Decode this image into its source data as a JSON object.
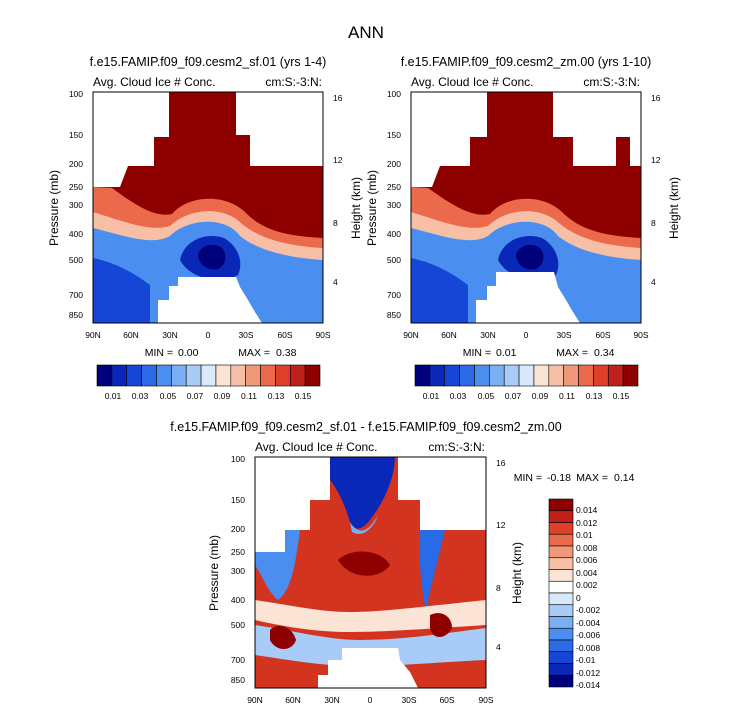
{
  "figure": {
    "title": "ANN"
  },
  "colors": {
    "ref_levels": [
      "#00007a",
      "#0a28b8",
      "#1646d6",
      "#2a6ae6",
      "#4a8ef0",
      "#7aaff4",
      "#a9cbf8",
      "#d9e9fb",
      "#fbe3d6",
      "#f7c0a6",
      "#f2987a",
      "#ec6a4c",
      "#e0402a",
      "#c0201a",
      "#8e0000"
    ],
    "diff_levels": [
      "#00007a",
      "#0a28b8",
      "#1646d6",
      "#2a6ae6",
      "#4a8ef0",
      "#7aaff4",
      "#a9cbf8",
      "#d9e9fb",
      "#ffffff",
      "#fbe3d6",
      "#f7c0a6",
      "#f2987a",
      "#ec6a4c",
      "#e0402a",
      "#c0201a",
      "#8e0000"
    ]
  },
  "chart_data": [
    {
      "type": "heatmap",
      "title": "f.e15.FAMIP.f09_f09.cesm2_sf.01 (yrs 1-4)",
      "left_label": "Avg. Cloud Ice # Conc.",
      "right_label": "cm:S:-3:N:",
      "xlabel": "",
      "ylabel": "Pressure (mb)",
      "y2label": "Height (km)",
      "xticks": [
        "90N",
        "60N",
        "30N",
        "0",
        "30S",
        "60S",
        "90S"
      ],
      "yticks": [
        "100",
        "150",
        "200",
        "250",
        "300",
        "400",
        "500",
        "700",
        "850"
      ],
      "y2ticks": [
        "16",
        "12",
        "8",
        "4"
      ],
      "stats": {
        "min_label": "MIN =",
        "min": "0.00",
        "max_label": "MAX =",
        "max": "0.38"
      },
      "colorbar": {
        "labels": [
          "0.01",
          "0.03",
          "0.05",
          "0.07",
          "0.09",
          "0.11",
          "0.13",
          "0.15"
        ]
      }
    },
    {
      "type": "heatmap",
      "title": "f.e15.FAMIP.f09_f09.cesm2_zm.00 (yrs 1-10)",
      "left_label": "Avg. Cloud Ice # Conc.",
      "right_label": "cm:S:-3:N:",
      "xlabel": "",
      "ylabel": "Pressure (mb)",
      "y2label": "Height (km)",
      "xticks": [
        "90N",
        "60N",
        "30N",
        "0",
        "30S",
        "60S",
        "90S"
      ],
      "yticks": [
        "100",
        "150",
        "200",
        "250",
        "300",
        "400",
        "500",
        "700",
        "850"
      ],
      "y2ticks": [
        "16",
        "12",
        "8",
        "4"
      ],
      "stats": {
        "min_label": "MIN =",
        "min": "0.01",
        "max_label": "MAX =",
        "max": "0.34"
      },
      "colorbar": {
        "labels": [
          "0.01",
          "0.03",
          "0.05",
          "0.07",
          "0.09",
          "0.11",
          "0.13",
          "0.15"
        ]
      }
    },
    {
      "type": "heatmap",
      "title": "f.e15.FAMIP.f09_f09.cesm2_sf.01 - f.e15.FAMIP.f09_f09.cesm2_zm.00",
      "left_label": "Avg. Cloud Ice # Conc.",
      "right_label": "cm:S:-3:N:",
      "xlabel": "",
      "ylabel": "Pressure (mb)",
      "y2label": "Height (km)",
      "xticks": [
        "90N",
        "60N",
        "30N",
        "0",
        "30S",
        "60S",
        "90S"
      ],
      "yticks": [
        "100",
        "150",
        "200",
        "250",
        "300",
        "400",
        "500",
        "700",
        "850"
      ],
      "y2ticks": [
        "16",
        "12",
        "8",
        "4"
      ],
      "stats": {
        "min_label": "MIN =",
        "min": "-0.18",
        "max_label": "MAX =",
        "max": "0.14"
      },
      "colorbar": {
        "labels": [
          "0.014",
          "0.012",
          "0.01",
          "0.008",
          "0.006",
          "0.004",
          "0.002",
          "0",
          "-0.002",
          "-0.004",
          "-0.006",
          "-0.008",
          "-0.01",
          "-0.012",
          "-0.014"
        ]
      }
    }
  ]
}
